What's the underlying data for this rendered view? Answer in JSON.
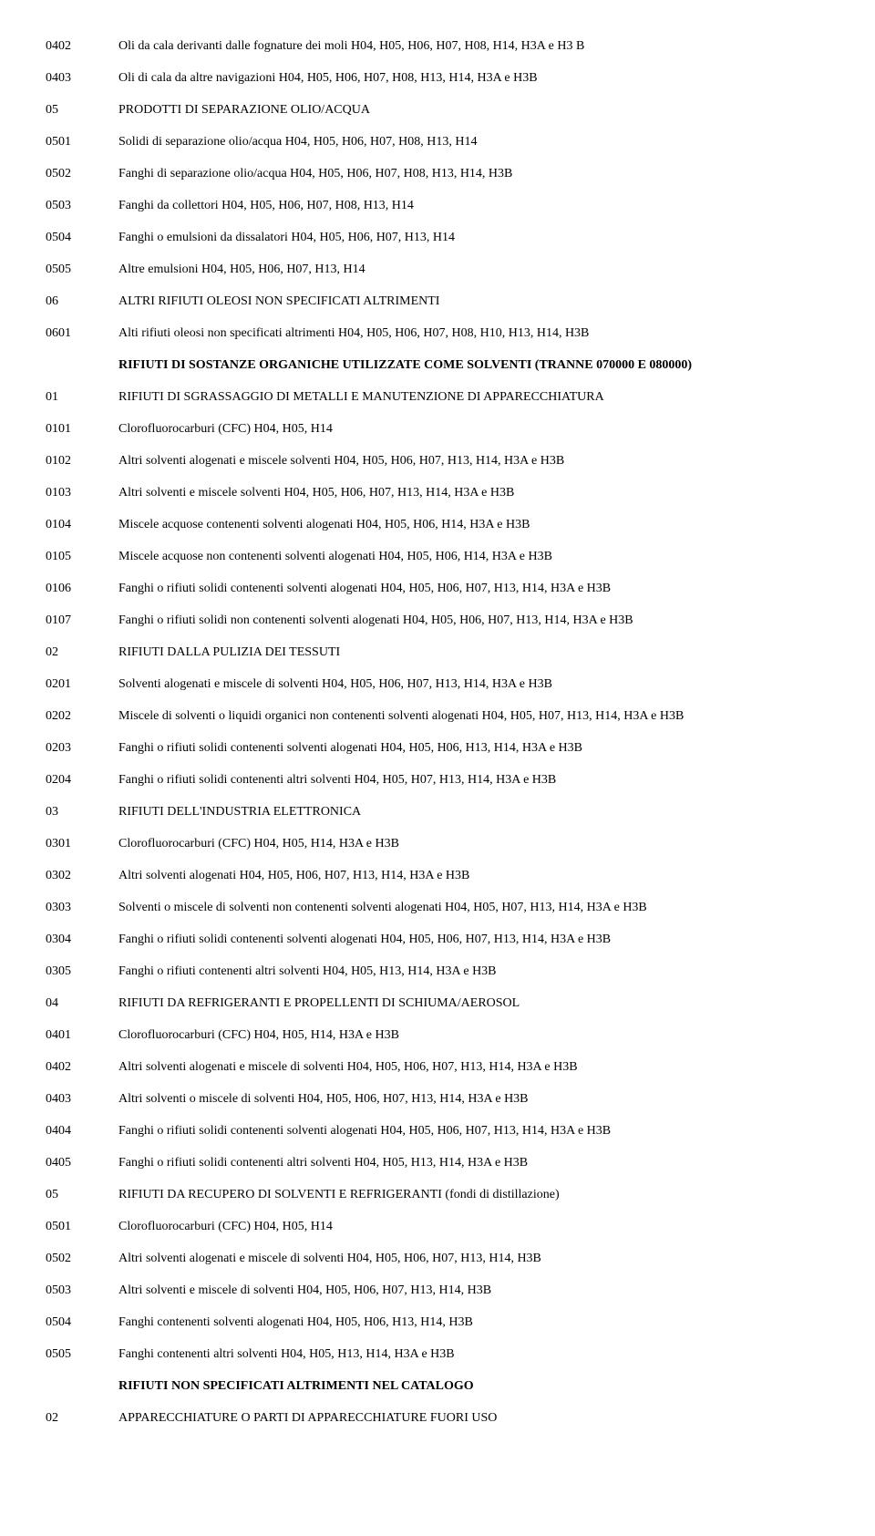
{
  "rows": [
    {
      "code": "0402",
      "desc": "Oli da cala derivanti dalle fognature dei moli H04, H05, H06, H07, H08, H14, H3A e H3 B",
      "bold": false
    },
    {
      "code": "0403",
      "desc": "Oli di cala da altre navigazioni H04, H05, H06, H07, H08, H13, H14, H3A e H3B",
      "bold": false
    },
    {
      "code": "05",
      "desc": "PRODOTTI DI SEPARAZIONE OLIO/ACQUA",
      "bold": false
    },
    {
      "code": "0501",
      "desc": "Solidi di separazione olio/acqua H04, H05, H06, H07, H08, H13, H14",
      "bold": false
    },
    {
      "code": "0502",
      "desc": "Fanghi di separazione olio/acqua H04, H05, H06, H07, H08, H13, H14, H3B",
      "bold": false
    },
    {
      "code": "0503",
      "desc": "Fanghi da collettori H04, H05, H06, H07, H08, H13, H14",
      "bold": false
    },
    {
      "code": "0504",
      "desc": "Fanghi o emulsioni da dissalatori H04, H05, H06, H07, H13, H14",
      "bold": false
    },
    {
      "code": "0505",
      "desc": "Altre emulsioni H04, H05, H06, H07, H13, H14",
      "bold": false
    },
    {
      "code": "06",
      "desc": "ALTRI RIFIUTI OLEOSI NON SPECIFICATI ALTRIMENTI",
      "bold": false
    },
    {
      "code": "0601",
      "desc": "Alti rifiuti oleosi non specificati altrimenti H04, H05, H06, H07, H08, H10, H13, H14, H3B",
      "bold": false
    },
    {
      "code": "",
      "desc": "RIFIUTI DI SOSTANZE ORGANICHE UTILIZZATE COME SOLVENTI (TRANNE 070000 E 080000)",
      "bold": true
    },
    {
      "code": "01",
      "desc": "RIFIUTI DI SGRASSAGGIO DI METALLI E MANUTENZIONE DI APPARECCHIATURA",
      "bold": false
    },
    {
      "code": "0101",
      "desc": "Clorofluorocarburi (CFC) H04, H05, H14",
      "bold": false
    },
    {
      "code": "0102",
      "desc": "Altri solventi alogenati e miscele solventi H04, H05, H06, H07, H13, H14, H3A e H3B",
      "bold": false
    },
    {
      "code": "0103",
      "desc": "Altri solventi e miscele solventi H04, H05, H06, H07, H13, H14, H3A e H3B",
      "bold": false
    },
    {
      "code": "0104",
      "desc": "Miscele acquose contenenti solventi alogenati H04, H05, H06, H14, H3A e H3B",
      "bold": false
    },
    {
      "code": "0105",
      "desc": "Miscele acquose non contenenti solventi alogenati H04, H05, H06, H14, H3A e H3B",
      "bold": false
    },
    {
      "code": "0106",
      "desc": "Fanghi o rifiuti solidi contenenti solventi alogenati H04, H05, H06, H07, H13, H14, H3A e H3B",
      "bold": false
    },
    {
      "code": "0107",
      "desc": "Fanghi o rifiuti solidi non contenenti solventi alogenati H04, H05, H06, H07, H13, H14, H3A e H3B",
      "bold": false
    },
    {
      "code": "02",
      "desc": "RIFIUTI DALLA PULIZIA DEI TESSUTI",
      "bold": false
    },
    {
      "code": "0201",
      "desc": "Solventi alogenati e miscele di solventi H04, H05, H06, H07, H13, H14, H3A e H3B",
      "bold": false
    },
    {
      "code": "0202",
      "desc": "Miscele di solventi o liquidi organici non contenenti solventi alogenati H04, H05, H07, H13, H14, H3A e H3B",
      "bold": false
    },
    {
      "code": "0203",
      "desc": "Fanghi o rifiuti solidi contenenti solventi alogenati H04, H05, H06, H13, H14, H3A e H3B",
      "bold": false
    },
    {
      "code": "0204",
      "desc": "Fanghi o rifiuti solidi contenenti altri solventi H04, H05, H07, H13, H14, H3A e H3B",
      "bold": false
    },
    {
      "code": "03",
      "desc": "RIFIUTI DELL'INDUSTRIA ELETTRONICA",
      "bold": false
    },
    {
      "code": "0301",
      "desc": "Clorofluorocarburi (CFC) H04, H05, H14, H3A e H3B",
      "bold": false
    },
    {
      "code": "0302",
      "desc": "Altri solventi alogenati H04, H05, H06, H07, H13, H14, H3A e H3B",
      "bold": false
    },
    {
      "code": "0303",
      "desc": "Solventi o miscele di solventi non contenenti solventi alogenati H04, H05, H07, H13, H14, H3A e H3B",
      "bold": false
    },
    {
      "code": "0304",
      "desc": "Fanghi o rifiuti solidi contenenti solventi alogenati H04, H05, H06, H07, H13, H14, H3A e H3B",
      "bold": false
    },
    {
      "code": "0305",
      "desc": "Fanghi o rifiuti contenenti altri solventi H04, H05, H13, H14, H3A e H3B",
      "bold": false
    },
    {
      "code": "04",
      "desc": "RIFIUTI DA REFRIGERANTI E PROPELLENTI DI SCHIUMA/AEROSOL",
      "bold": false
    },
    {
      "code": "0401",
      "desc": "Clorofluorocarburi (CFC) H04, H05, H14, H3A e H3B",
      "bold": false
    },
    {
      "code": "0402",
      "desc": "Altri solventi alogenati e miscele di solventi H04, H05, H06, H07, H13, H14, H3A e H3B",
      "bold": false
    },
    {
      "code": "0403",
      "desc": "Altri solventi o miscele di solventi H04, H05, H06, H07, H13, H14, H3A e H3B",
      "bold": false
    },
    {
      "code": "0404",
      "desc": "Fanghi o rifiuti solidi contenenti solventi alogenati H04, H05, H06, H07, H13, H14, H3A e H3B",
      "bold": false
    },
    {
      "code": "0405",
      "desc": "Fanghi o rifiuti solidi contenenti altri solventi H04, H05, H13, H14, H3A e H3B",
      "bold": false
    },
    {
      "code": "05",
      "desc": "RIFIUTI DA RECUPERO DI SOLVENTI E REFRIGERANTI (fondi di distillazione)",
      "bold": false
    },
    {
      "code": "0501",
      "desc": "Clorofluorocarburi (CFC) H04, H05, H14",
      "bold": false
    },
    {
      "code": "0502",
      "desc": "Altri solventi alogenati e miscele di solventi H04, H05, H06, H07, H13, H14, H3B",
      "bold": false
    },
    {
      "code": "0503",
      "desc": "Altri solventi e miscele di solventi H04, H05, H06, H07, H13, H14, H3B",
      "bold": false
    },
    {
      "code": "0504",
      "desc": "Fanghi contenenti solventi alogenati H04, H05, H06, H13, H14, H3B",
      "bold": false
    },
    {
      "code": "0505",
      "desc": "Fanghi contenenti altri solventi H04, H05, H13, H14, H3A e H3B",
      "bold": false
    },
    {
      "code": "",
      "desc": "RIFIUTI NON SPECIFICATI ALTRIMENTI NEL CATALOGO",
      "bold": true
    },
    {
      "code": "02",
      "desc": "APPARECCHIATURE O PARTI DI APPARECCHIATURE FUORI USO",
      "bold": false
    }
  ]
}
